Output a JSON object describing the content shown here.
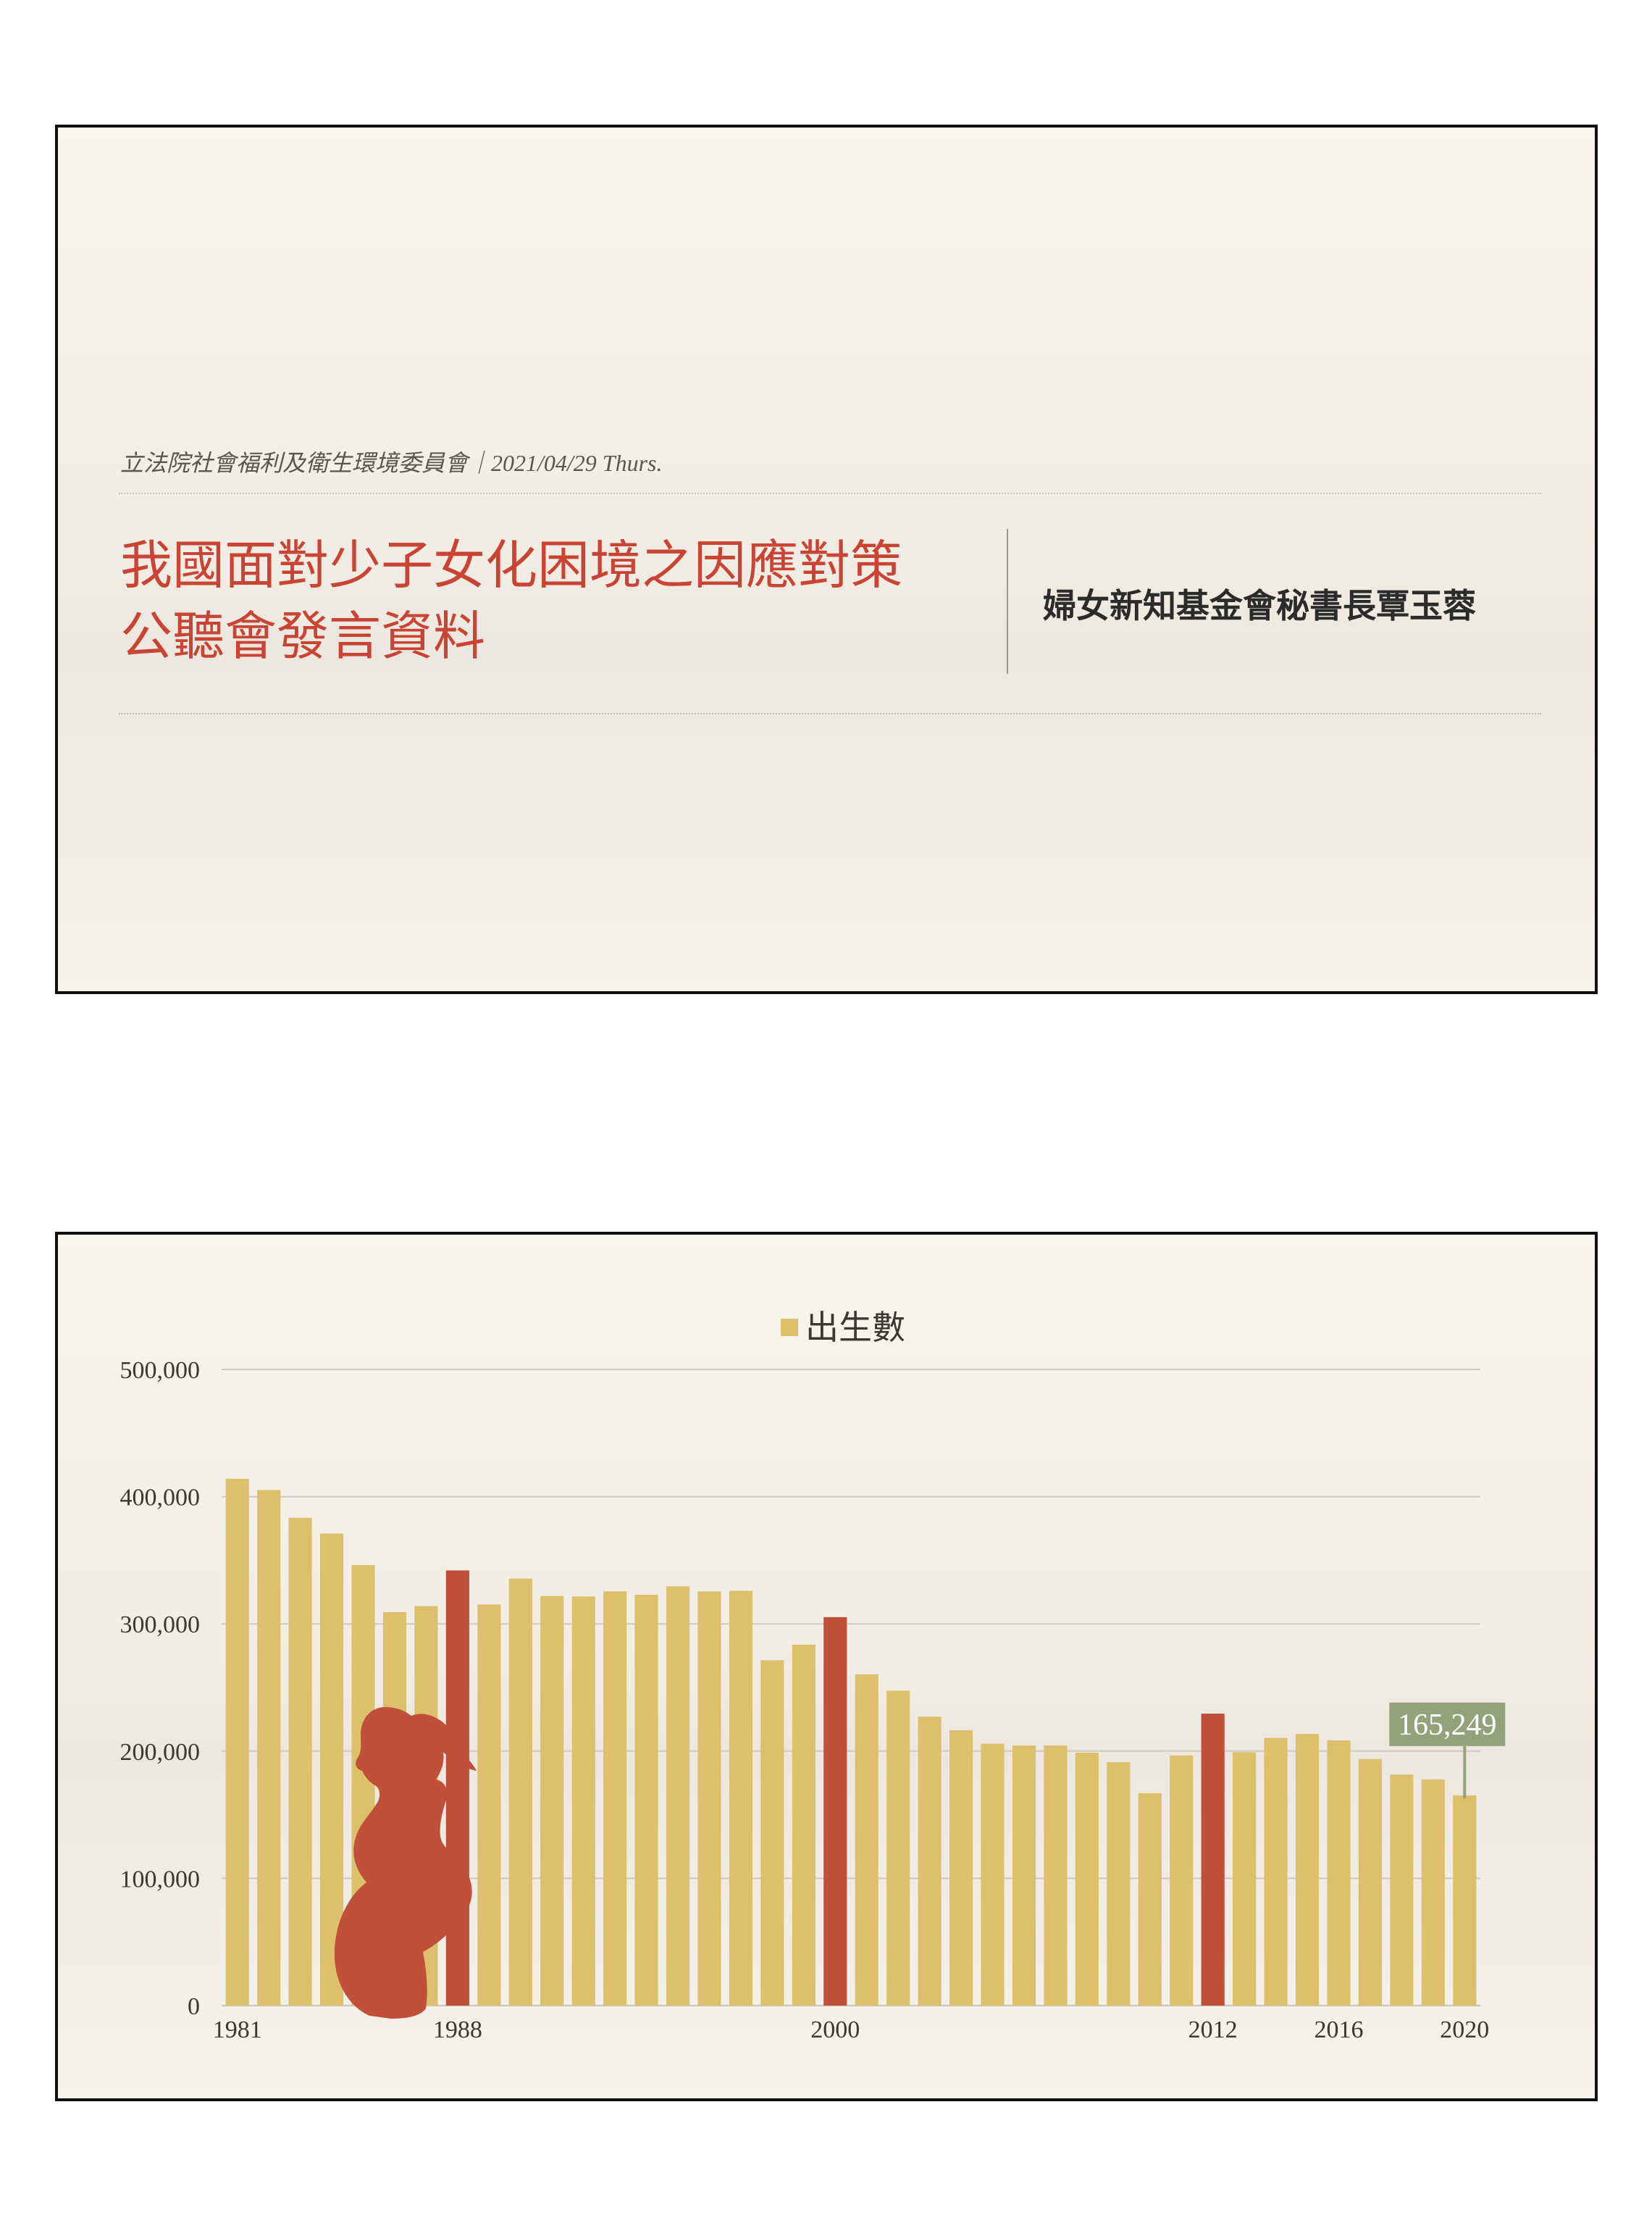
{
  "slide1": {
    "subtitle": "立法院社會福利及衛生環境委員會｜2021/04/29 Thurs.",
    "title_lines": [
      "我國面對少子女化困境之因應對策",
      "公聽會發言資料"
    ],
    "author": "婦女新知基金會秘書長覃玉蓉"
  },
  "chart_data": {
    "type": "bar",
    "legend": "出生數",
    "legend_position": "top-center",
    "categories": [
      1981,
      1982,
      1983,
      1984,
      1985,
      1986,
      1987,
      1988,
      1989,
      1990,
      1991,
      1992,
      1993,
      1994,
      1995,
      1996,
      1997,
      1998,
      1999,
      2000,
      2001,
      2002,
      2003,
      2004,
      2005,
      2006,
      2007,
      2008,
      2009,
      2010,
      2011,
      2012,
      2013,
      2014,
      2015,
      2016,
      2017,
      2018,
      2019,
      2020
    ],
    "values": [
      414069,
      405263,
      383439,
      371008,
      346208,
      309230,
      314024,
      342031,
      315299,
      335618,
      321932,
      321632,
      325613,
      322938,
      329581,
      325545,
      326002,
      271450,
      283661,
      305312,
      260354,
      247530,
      227070,
      216419,
      205854,
      204459,
      204414,
      198733,
      191310,
      166886,
      196627,
      229481,
      199113,
      210383,
      213598,
      208440,
      193844,
      181601,
      177767,
      165249
    ],
    "highlighted_categories": [
      1988,
      2000,
      2012
    ],
    "x_tick_labels": [
      "1981",
      "1988",
      "2000",
      "2012",
      "2016",
      "2020"
    ],
    "y_tick_labels": [
      "0",
      "100,000",
      "200,000",
      "300,000",
      "400,000",
      "500,000"
    ],
    "ylim": [
      0,
      500000
    ],
    "grid": true,
    "callout": {
      "category": 2020,
      "label": "165,249"
    },
    "colors": {
      "bar": "#dcc06c",
      "highlight": "#c1503b",
      "callout": "#94a27c",
      "grid": "#cfcac0"
    }
  },
  "decor": {
    "silhouette_icon": "pregnant-woman-silhouette-icon"
  }
}
